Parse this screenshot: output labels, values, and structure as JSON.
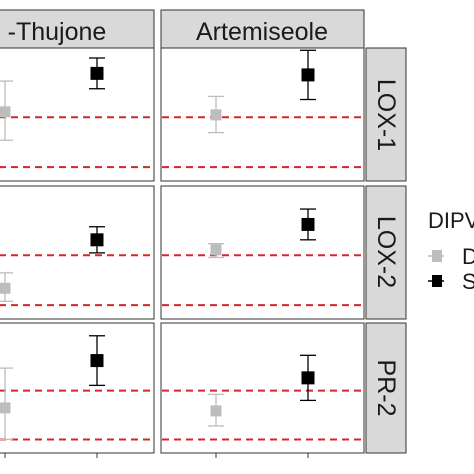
{
  "chart_data": {
    "type": "scatter",
    "facet_columns": [
      "α-Thujone",
      "Artemiseole"
    ],
    "facet_column_labels_shown": [
      "-Thujone",
      "Artemiseole"
    ],
    "facet_rows": [
      "LOX-1",
      "LOX-2",
      "PR-2"
    ],
    "legend": {
      "title_shown": "DIPV",
      "position": "right",
      "entries_shown": [
        "D",
        "S"
      ],
      "colors": [
        "#bdbdbd",
        "#000000"
      ]
    },
    "reference_lines": {
      "style": "dashed",
      "color": "#d62728"
    },
    "series": [
      {
        "group": "D",
        "color": "#bdbdbd",
        "points": [
          {
            "column": "α-Thujone",
            "row": "LOX-1",
            "y": 0.72,
            "lower": 0.35,
            "upper": 1.12
          },
          {
            "column": "Artemiseole",
            "row": "LOX-1",
            "y": 0.68,
            "lower": 0.45,
            "upper": 0.92
          },
          {
            "column": "α-Thujone",
            "row": "LOX-2",
            "y": 0.22,
            "lower": 0.05,
            "upper": 0.42
          },
          {
            "column": "Artemiseole",
            "row": "LOX-2",
            "y": 0.72,
            "lower": 0.62,
            "upper": 0.8
          },
          {
            "column": "α-Thujone",
            "row": "PR-2",
            "y": 0.42,
            "lower": 0.0,
            "upper": 0.95
          },
          {
            "column": "Artemiseole",
            "row": "PR-2",
            "y": 0.38,
            "lower": 0.18,
            "upper": 0.6
          }
        ]
      },
      {
        "group": "S",
        "color": "#000000",
        "points": [
          {
            "column": "α-Thujone",
            "row": "LOX-1",
            "y": 1.22,
            "lower": 1.02,
            "upper": 1.42
          },
          {
            "column": "Artemiseole",
            "row": "LOX-1",
            "y": 1.2,
            "lower": 0.88,
            "upper": 1.52
          },
          {
            "column": "α-Thujone",
            "row": "LOX-2",
            "y": 0.85,
            "lower": 0.68,
            "upper": 1.02
          },
          {
            "column": "Artemiseole",
            "row": "LOX-2",
            "y": 1.05,
            "lower": 0.85,
            "upper": 1.25
          },
          {
            "column": "α-Thujone",
            "row": "PR-2",
            "y": 1.05,
            "lower": 0.72,
            "upper": 1.38
          },
          {
            "column": "Artemiseole",
            "row": "PR-2",
            "y": 0.82,
            "lower": 0.52,
            "upper": 1.12
          }
        ]
      }
    ],
    "ref_levels": {
      "LOX-1": [
        0.0,
        0.65
      ],
      "LOX-2": [
        0.0,
        0.65
      ],
      "PR-2": [
        0.0,
        0.65
      ]
    },
    "ylim": [
      -0.18,
      1.55
    ],
    "grid": false
  }
}
